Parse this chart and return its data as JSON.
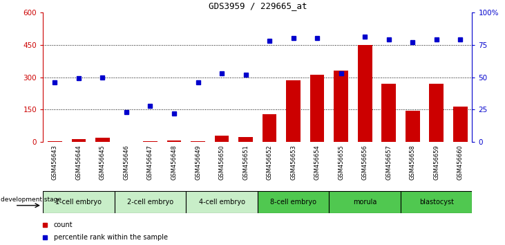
{
  "title": "GDS3959 / 229665_at",
  "samples": [
    "GSM456643",
    "GSM456644",
    "GSM456645",
    "GSM456646",
    "GSM456647",
    "GSM456648",
    "GSM456649",
    "GSM456650",
    "GSM456651",
    "GSM456652",
    "GSM456653",
    "GSM456654",
    "GSM456655",
    "GSM456656",
    "GSM456657",
    "GSM456658",
    "GSM456659",
    "GSM456660"
  ],
  "count_values": [
    5,
    15,
    20,
    2,
    5,
    8,
    5,
    30,
    25,
    130,
    285,
    310,
    330,
    450,
    270,
    145,
    270,
    165
  ],
  "percentile_values": [
    46,
    49,
    50,
    23,
    28,
    22,
    46,
    53,
    52,
    78,
    80,
    80,
    53,
    81,
    79,
    77,
    79,
    79
  ],
  "ylim_left": [
    0,
    600
  ],
  "ylim_right": [
    0,
    100
  ],
  "yticks_left": [
    0,
    150,
    300,
    450,
    600
  ],
  "yticks_right": [
    0,
    25,
    50,
    75,
    100
  ],
  "stage_groups": [
    {
      "label": "1-cell embryo",
      "start": 0,
      "end": 3
    },
    {
      "label": "2-cell embryo",
      "start": 3,
      "end": 6
    },
    {
      "label": "4-cell embryo",
      "start": 6,
      "end": 9
    },
    {
      "label": "8-cell embryo",
      "start": 9,
      "end": 12
    },
    {
      "label": "morula",
      "start": 12,
      "end": 15
    },
    {
      "label": "blastocyst",
      "start": 15,
      "end": 18
    }
  ],
  "stage_colors": [
    "#C8EEC8",
    "#C8EEC8",
    "#C8EEC8",
    "#50C850",
    "#50C850",
    "#50C850"
  ],
  "bar_color": "#CC0000",
  "dot_color": "#0000CC",
  "axis_left_color": "#CC0000",
  "axis_right_color": "#0000CC",
  "sample_bg_color": "#D8D8D8"
}
